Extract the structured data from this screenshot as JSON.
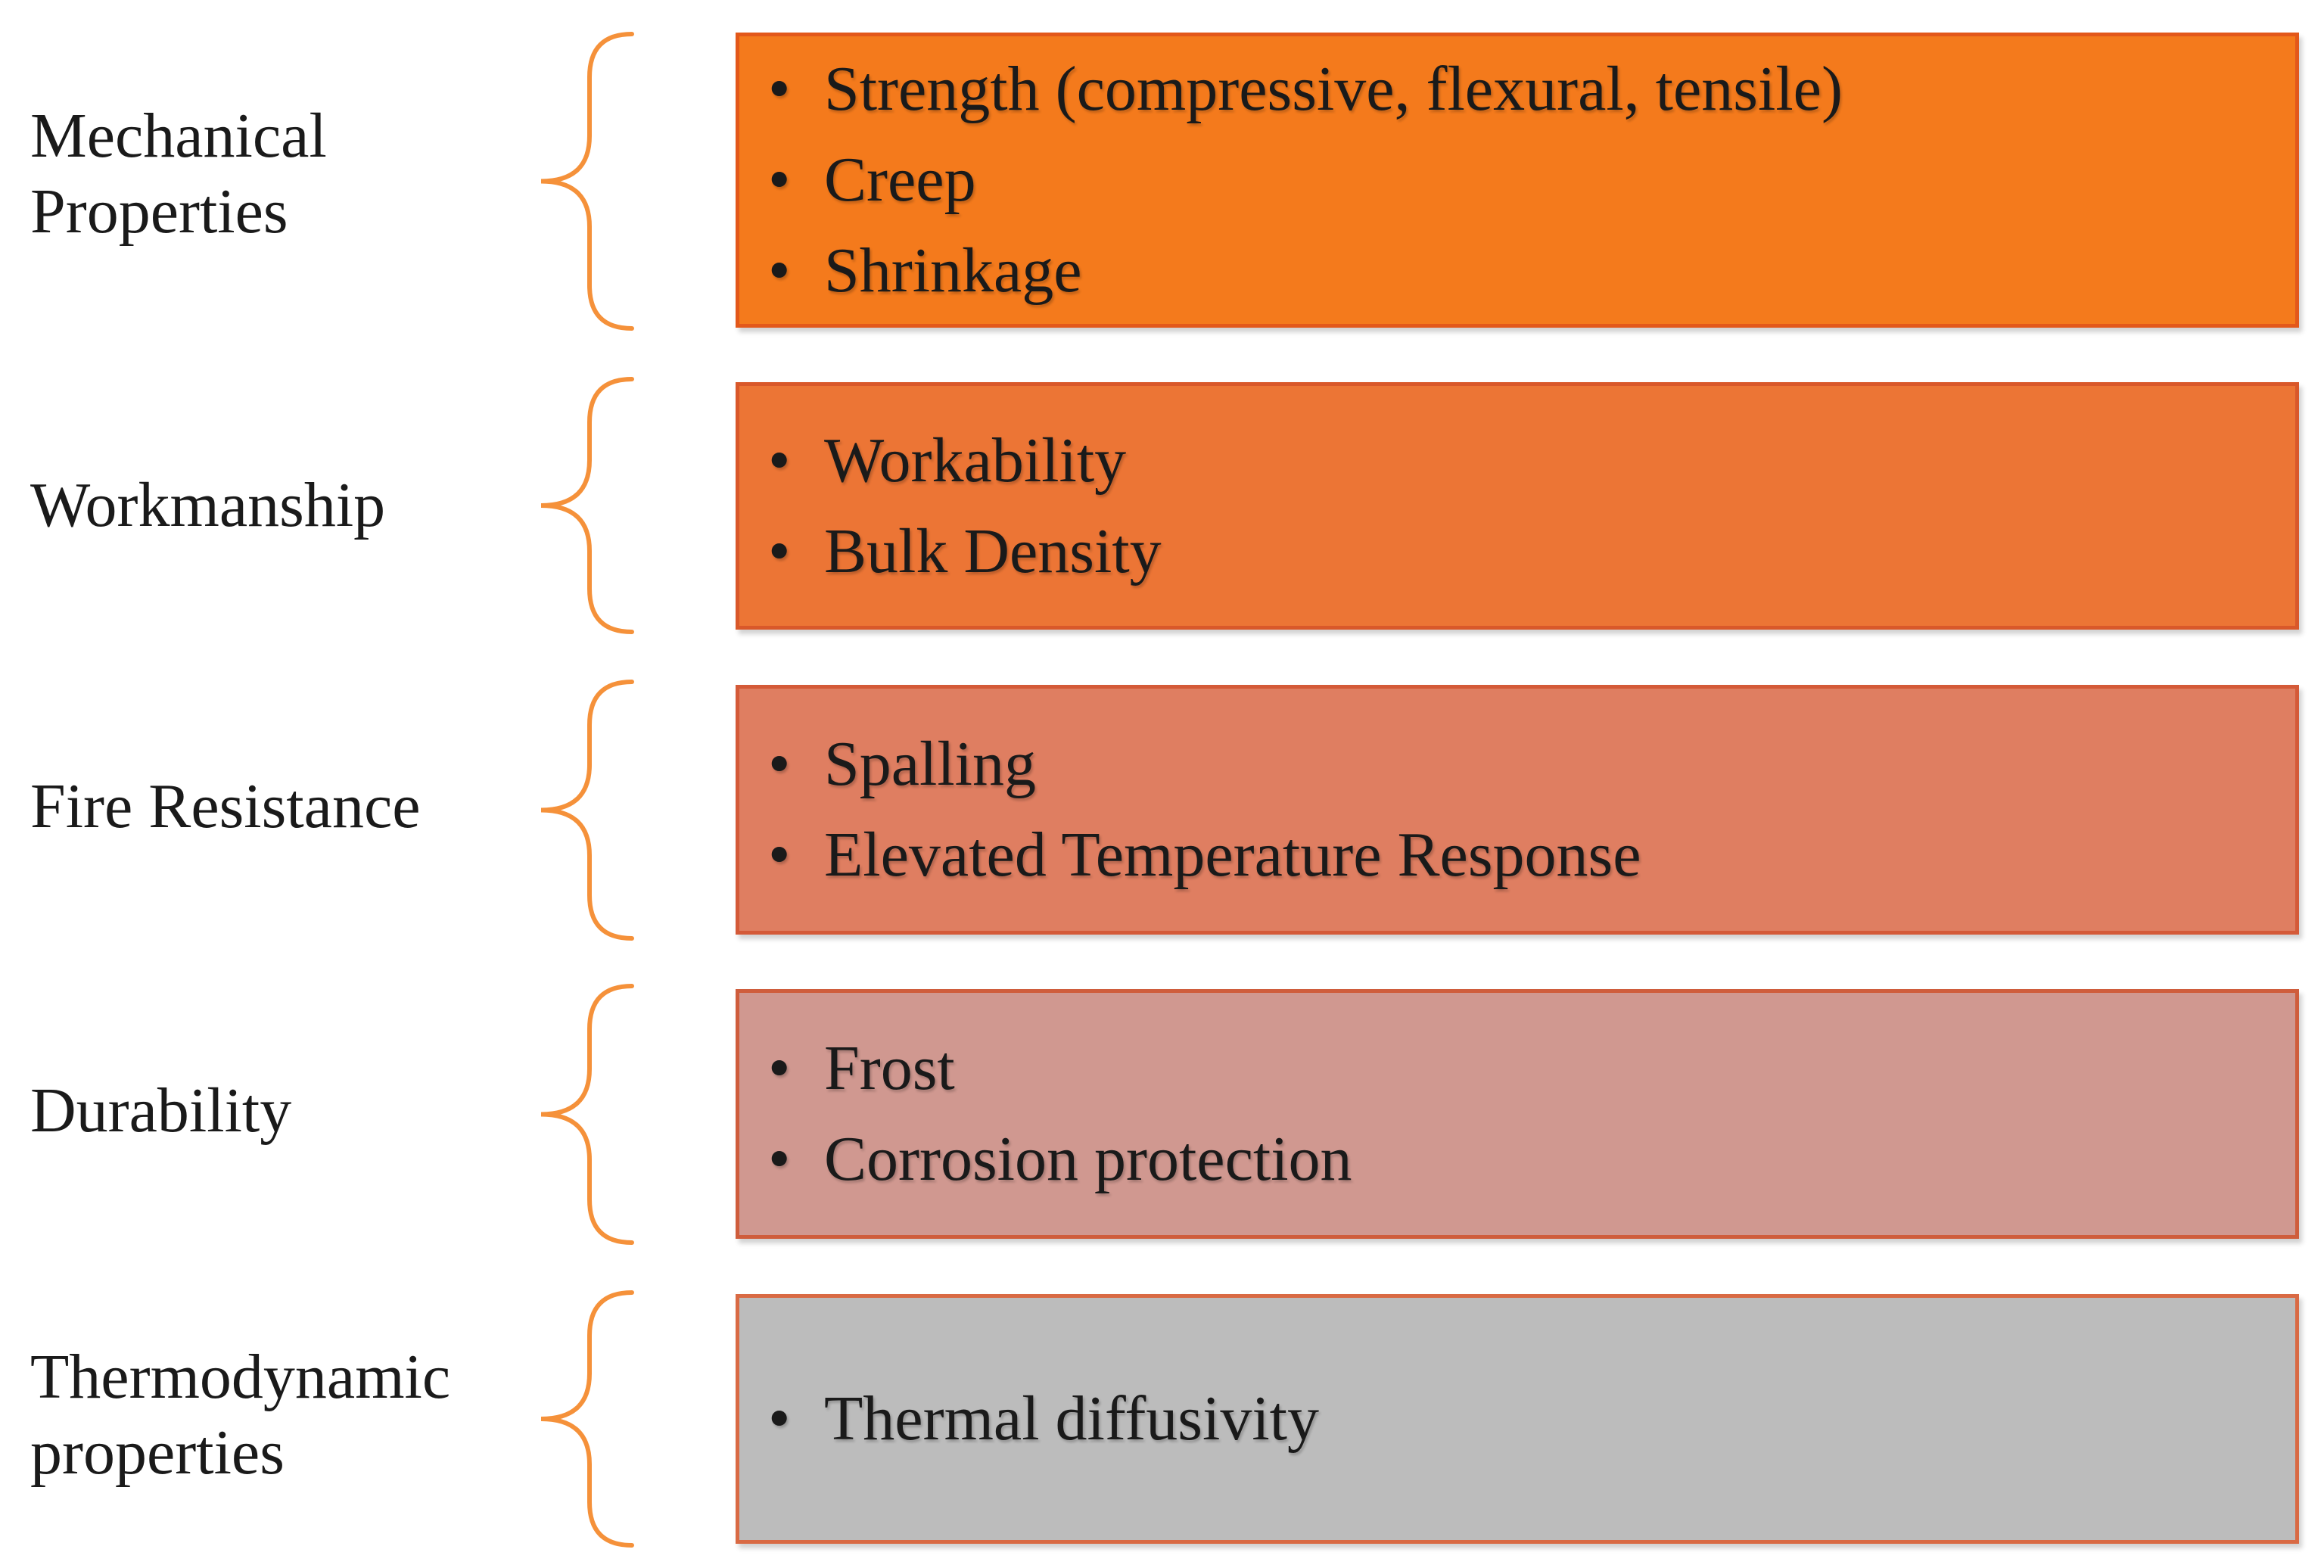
{
  "colors": {
    "brace": "#f5913a",
    "box_border": "#d9582a"
  },
  "groups": [
    {
      "category": "Mechanical\nProperties",
      "fill": "#f47a1c",
      "border": "#e3581a",
      "items": [
        "Strength (compressive, flexural, tensile)",
        "Creep",
        "Shrinkage"
      ]
    },
    {
      "category": "Workmanship",
      "fill": "#ec7535",
      "border": "#d9582a",
      "items": [
        "Workability",
        "Bulk Density"
      ]
    },
    {
      "category": "Fire Resistance",
      "fill": "#df7e61",
      "border": "#d45a38",
      "items": [
        "Spalling",
        "Elevated Temperature Response"
      ]
    },
    {
      "category": "Durability",
      "fill": "#d09890",
      "border": "#cf5d3c",
      "items": [
        "Frost",
        "Corrosion protection"
      ]
    },
    {
      "category": "Thermodynamic\nproperties",
      "fill": "#bcbcbc",
      "border": "#d96a44",
      "items": [
        "Thermal diffusivity"
      ]
    }
  ]
}
